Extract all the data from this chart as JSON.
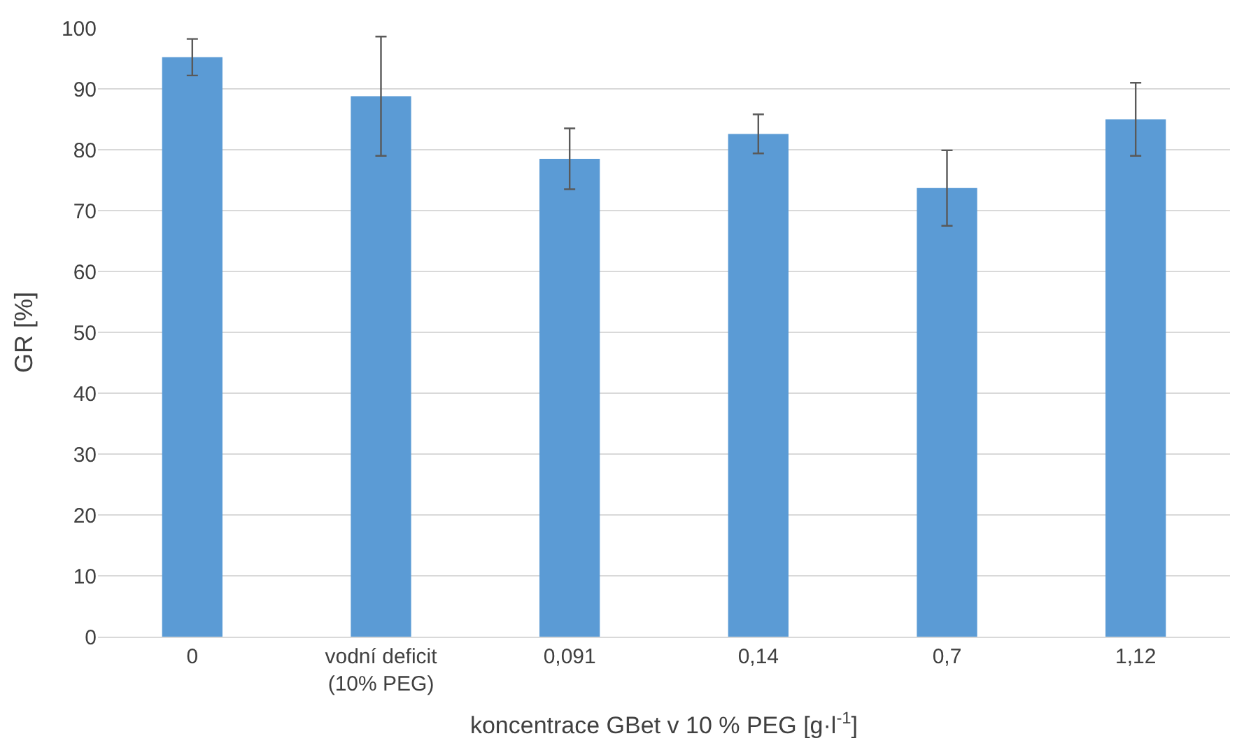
{
  "chart_data": {
    "type": "bar",
    "categories": [
      "0",
      "vodní deficit\n(10% PEG)",
      "0,091",
      "0,14",
      "0,7",
      "1,12"
    ],
    "values": [
      95.2,
      88.8,
      78.5,
      82.6,
      73.7,
      85.0
    ],
    "errors": [
      3.0,
      9.8,
      5.0,
      3.2,
      6.2,
      6.0
    ],
    "color": "#5b9bd5",
    "xlabel": "koncentrace GBet v 10 % PEG [g·l$^{-1}$]",
    "ylabel": "GR [%]",
    "ylim": [
      0,
      100
    ],
    "yticks": [
      0,
      10,
      20,
      30,
      40,
      50,
      60,
      70,
      80,
      90,
      100
    ],
    "grid": "y"
  }
}
